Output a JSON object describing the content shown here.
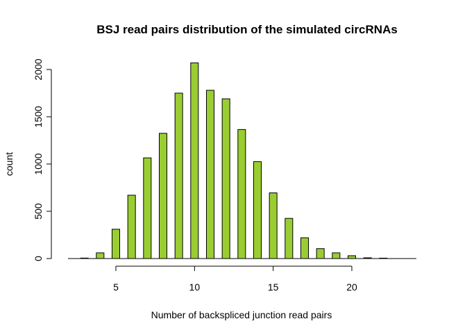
{
  "chart_data": {
    "type": "bar",
    "title": "BSJ read pairs distribution of the simulated circRNAs",
    "xlabel": "Number of backspliced junction read pairs",
    "ylabel": "count",
    "x": [
      3,
      4,
      5,
      6,
      7,
      8,
      9,
      10,
      11,
      12,
      13,
      14,
      15,
      16,
      17,
      18,
      19,
      20,
      21,
      22
    ],
    "values": [
      5,
      60,
      310,
      670,
      1065,
      1325,
      1750,
      2070,
      1780,
      1690,
      1365,
      1025,
      695,
      425,
      220,
      105,
      60,
      30,
      8,
      4
    ],
    "xlim": [
      2.5,
      23.5
    ],
    "ylim": [
      0,
      2070
    ],
    "x_ticks": [
      5,
      10,
      15,
      20
    ],
    "y_ticks": [
      0,
      500,
      1000,
      1500,
      2000
    ],
    "bar_color": "#9ACD32",
    "bar_edge_color": "#000000",
    "grid": false,
    "legend": "none"
  }
}
